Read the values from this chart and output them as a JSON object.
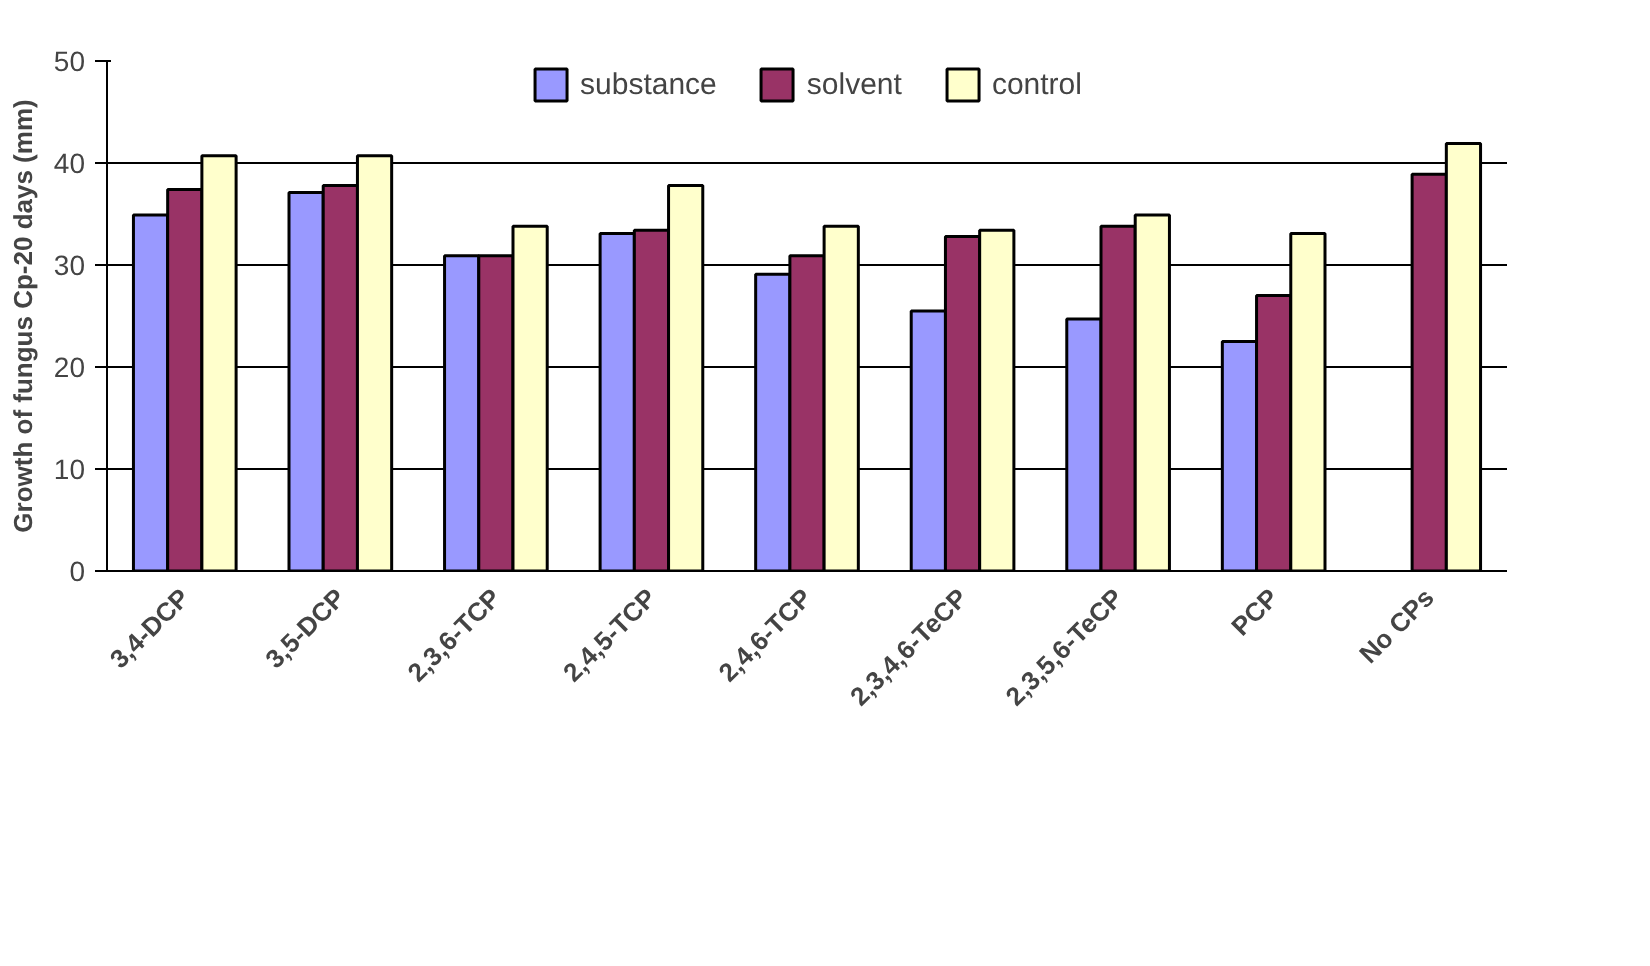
{
  "chart_data": {
    "type": "bar",
    "ylabel": "Growth of fungus Cp-20 days (mm)",
    "categories": [
      "3,4-DCP",
      "3,5-DCP",
      "2,3,6-TCP",
      "2,4,5-TCP",
      "2,4,6-TCP",
      "2,3,4,6-TeCP",
      "2,3,5,6-TeCP",
      "PCP",
      "No CPs"
    ],
    "series": [
      {
        "name": "substance",
        "color": "#9999ff",
        "values": [
          34.9,
          37.1,
          30.9,
          33.1,
          29.1,
          25.5,
          24.7,
          22.5,
          null
        ]
      },
      {
        "name": "solvent",
        "color": "#993366",
        "values": [
          37.4,
          37.8,
          30.9,
          33.4,
          30.9,
          32.8,
          33.8,
          27.0,
          38.9
        ]
      },
      {
        "name": "control",
        "color": "#ffffcc",
        "values": [
          40.7,
          40.7,
          33.8,
          37.8,
          33.8,
          33.4,
          34.9,
          33.1,
          41.9
        ]
      }
    ],
    "ylim": [
      0,
      50
    ],
    "yticks": [
      0,
      10,
      20,
      30,
      40,
      50
    ],
    "grid": "y",
    "legend": "top"
  }
}
